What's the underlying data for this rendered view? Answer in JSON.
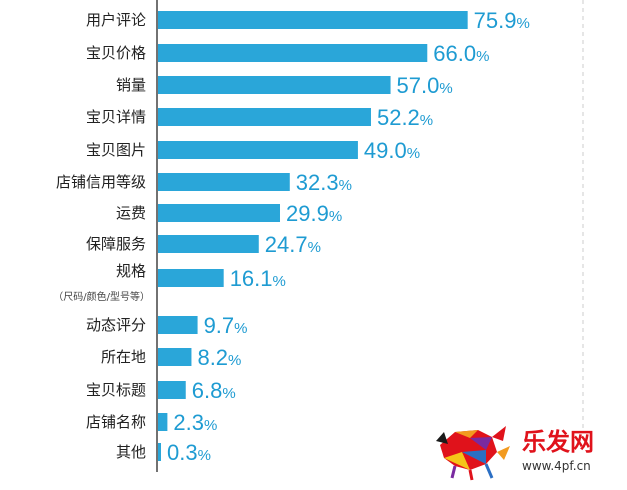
{
  "colors": {
    "bar": "#2aa6d9",
    "value_text": "#1e9bd2",
    "label_text": "#222222",
    "axis": "#444444",
    "watermark_red": "#e0121b"
  },
  "chart_data": {
    "type": "bar",
    "orientation": "horizontal",
    "categories": [
      "用户评论",
      "宝贝价格",
      "销量",
      "宝贝详情",
      "宝贝图片",
      "店铺信用等级",
      "运费",
      "保障服务",
      "规格",
      "动态评分",
      "所在地",
      "宝贝标题",
      "店铺名称",
      "其他"
    ],
    "category_notes": {
      "规格": "（尺码/颜色/型号等）"
    },
    "values": [
      75.9,
      66.0,
      57.0,
      52.2,
      49.0,
      32.3,
      29.9,
      24.7,
      16.1,
      9.7,
      8.2,
      6.8,
      2.3,
      0.3
    ],
    "value_labels": [
      "75.9",
      "66.0",
      "57.0",
      "52.2",
      "49.0",
      "32.3",
      "29.9",
      "24.7",
      "16.1",
      "9.7",
      "8.2",
      "6.8",
      "2.3",
      "0.3"
    ],
    "value_suffix": "%",
    "xlim": [
      0,
      80
    ],
    "grid": false,
    "legend": "none",
    "title": "",
    "xlabel": "",
    "ylabel": ""
  },
  "watermark": {
    "text": "乐发网",
    "url": "www.4pf.cn",
    "icon": "bull-logo-icon"
  }
}
